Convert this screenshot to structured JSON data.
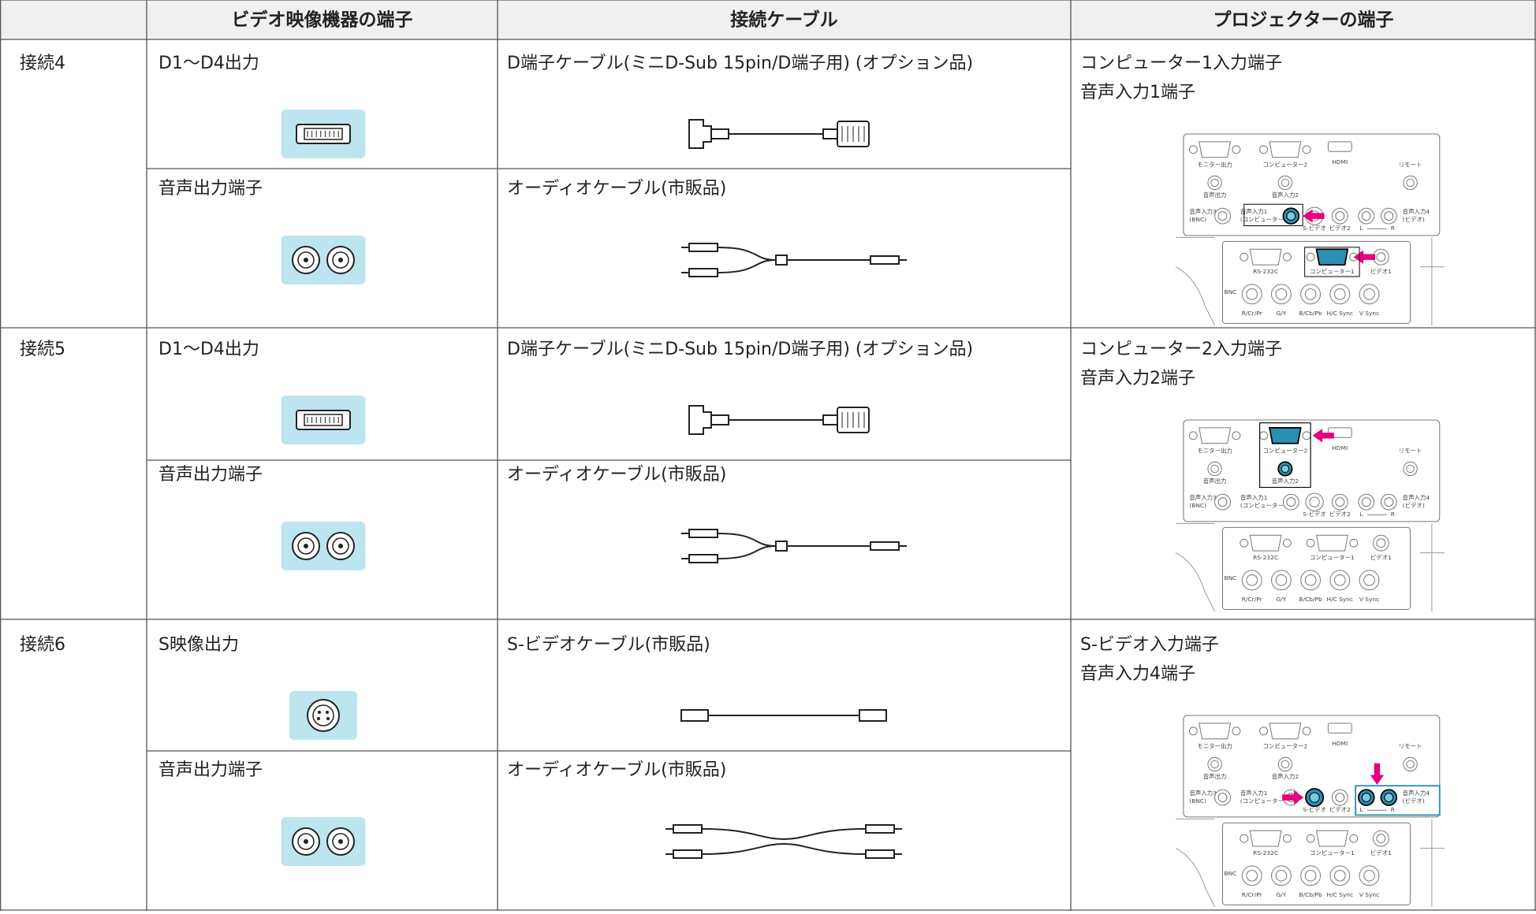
{
  "table": {
    "header": [
      "ビデオ映像機器の端子",
      "接続ケーブル",
      "プロジェクターの端子"
    ],
    "rows": [
      {
        "connection": "接続4",
        "sources": [
          {
            "label": "D1～D4出力",
            "cable": "D端子ケーブル(ミニD-Sub 15pin/D端子用) (オプション品)"
          },
          {
            "label": "音声出力端子",
            "cable": "オーディオケーブル(市販品)"
          }
        ],
        "projector": [
          "コンピューター1入力端子",
          "音声入力1端子"
        ]
      },
      {
        "connection": "接続5",
        "sources": [
          {
            "label": "D1～D4出力",
            "cable": "D端子ケーブル(ミニD-Sub 15pin/D端子用) (オプション品)"
          },
          {
            "label": "音声出力端子",
            "cable": "オーディオケーブル(市販品)"
          }
        ],
        "projector": [
          "コンピューター2入力端子",
          "音声入力2端子"
        ]
      },
      {
        "connection": "接続6",
        "sources": [
          {
            "label": "S映像出力",
            "cable": "S-ビデオケーブル(市販品)"
          },
          {
            "label": "音声出力端子",
            "cable": "オーディオケーブル(市販品)"
          }
        ],
        "projector": [
          "S-ビデオ入力端子",
          "音声入力4端子"
        ]
      }
    ],
    "panel_labels": {
      "monitor_out": "モニター出力",
      "computer2": "コンピューター2",
      "hdmi": "HDMI",
      "remote": "リモート",
      "audio_out": "音声出力",
      "audio_in2": "音声入力2",
      "audio_in3": [
        "音声入力3",
        "(BNC)"
      ],
      "audio_in1": [
        "音声入力1",
        "(コンピューター1)"
      ],
      "s_video": "S-ビデオ",
      "video2": "ビデオ2",
      "l": "L",
      "r": "R",
      "audio_in4": [
        "音声入力4",
        "(ビデオ)"
      ],
      "rs232c": "RS-232C",
      "computer1": "コンピューター1",
      "video1": "ビデオ1",
      "bnc": "BNC",
      "bnc_ports": [
        "R/Cr/Pr",
        "G/Y",
        "B/Cb/Pb",
        "H/C Sync",
        "V Sync"
      ]
    }
  }
}
